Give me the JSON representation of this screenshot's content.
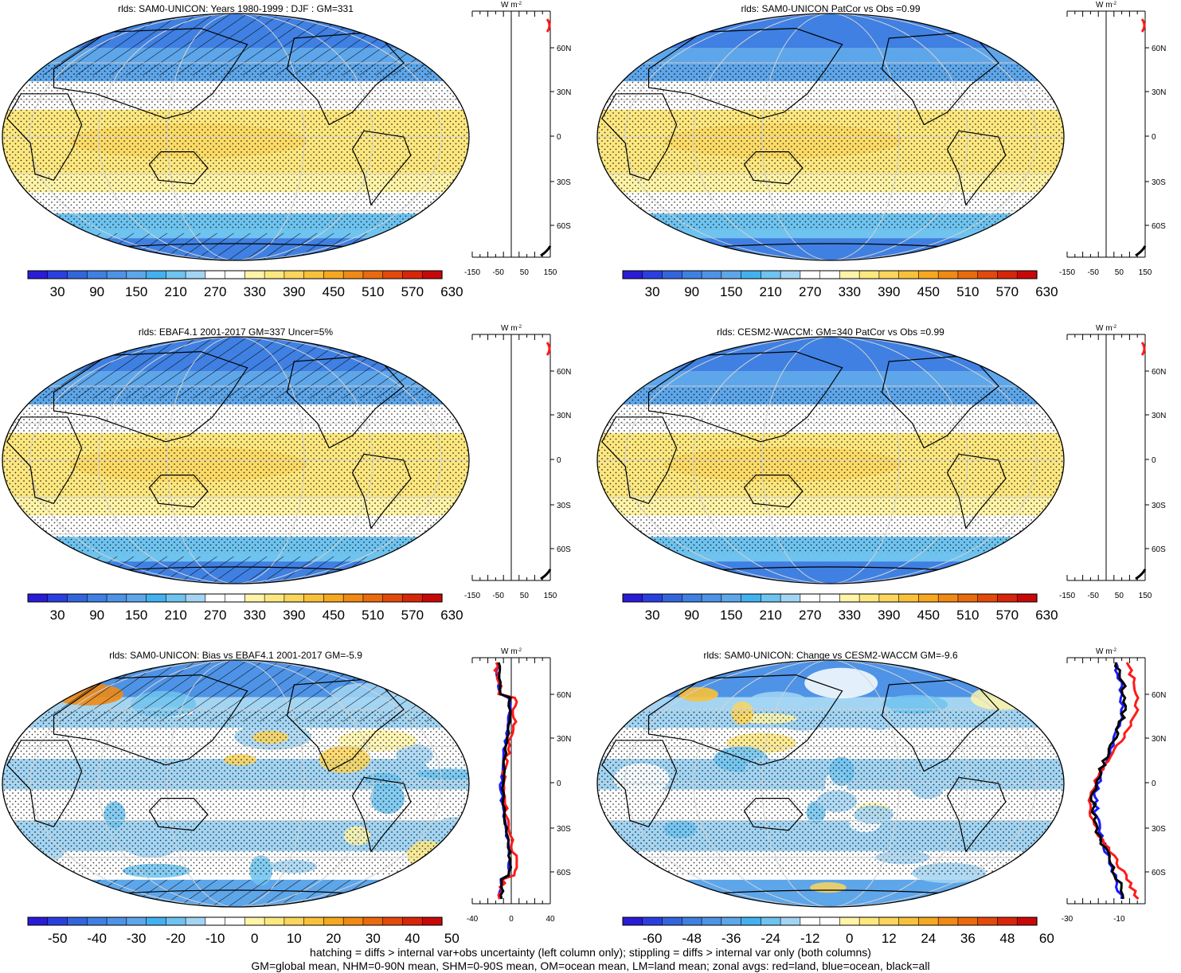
{
  "palette_levels": [
    "#2a1bd6",
    "#2b3fe0",
    "#3366dd",
    "#3f80e2",
    "#4e93e6",
    "#5ea6ea",
    "#43b1ef",
    "#6ec3ef",
    "#a3d5f3",
    "#ffffff",
    "#ffffff",
    "#fff4a8",
    "#fde880",
    "#fbd55c",
    "#f9c13a",
    "#f5a820",
    "#f08a14",
    "#ea6a0e",
    "#e24a0b",
    "#d8260a",
    "#c80808"
  ],
  "colors": {
    "land_line": "#ff1a1a",
    "ocean_line": "#1a1aff",
    "all_line": "#000000",
    "grid": "#d3d3d3",
    "coast": "#000000"
  },
  "panels": [
    {
      "title": "rlds: SAM0-UNICON: Years 1980-1999 : DJF : GM=331",
      "colorbar_labels": [
        "30",
        "90",
        "150",
        "210",
        "270",
        "330",
        "390",
        "450",
        "510",
        "570",
        "630"
      ],
      "chart_data": {
        "type": "heatmap",
        "projection": "robinson",
        "variable": "rlds",
        "lat_labels": [
          "60N",
          "30N",
          "0",
          "30S",
          "60S"
        ],
        "zonal_xticks": [
          "-150",
          "-50",
          "50",
          "150"
        ],
        "zonal_xlim": [
          -150,
          150
        ],
        "zonal_unit": "W m-2",
        "hatching": true,
        "stippling": true
      }
    },
    {
      "title": "rlds: SAM0-UNICON PatCor vs Obs =0.99",
      "colorbar_labels": [
        "30",
        "90",
        "150",
        "210",
        "270",
        "330",
        "390",
        "450",
        "510",
        "570",
        "630"
      ],
      "chart_data": {
        "type": "heatmap",
        "projection": "robinson",
        "variable": "rlds",
        "lat_labels": [
          "60N",
          "30N",
          "0",
          "30S",
          "60S"
        ],
        "zonal_xticks": [
          "-150",
          "-50",
          "50",
          "150"
        ],
        "zonal_xlim": [
          -150,
          150
        ],
        "zonal_unit": "W m-2",
        "hatching": false,
        "stippling": true
      }
    },
    {
      "title": "rlds: EBAF4.1 2001-2017 GM=337 Uncer=5%",
      "colorbar_labels": [
        "30",
        "90",
        "150",
        "210",
        "270",
        "330",
        "390",
        "450",
        "510",
        "570",
        "630"
      ],
      "chart_data": {
        "type": "heatmap",
        "projection": "robinson",
        "variable": "rlds",
        "lat_labels": [
          "60N",
          "30N",
          "0",
          "30S",
          "60S"
        ],
        "zonal_xticks": [
          "-150",
          "-50",
          "50",
          "150"
        ],
        "zonal_xlim": [
          -150,
          150
        ],
        "zonal_unit": "W m-2",
        "hatching": true,
        "stippling": true
      }
    },
    {
      "title": "rlds: CESM2-WACCM: GM=340 PatCor vs Obs =0.99",
      "colorbar_labels": [
        "30",
        "90",
        "150",
        "210",
        "270",
        "330",
        "390",
        "450",
        "510",
        "570",
        "630"
      ],
      "chart_data": {
        "type": "heatmap",
        "projection": "robinson",
        "variable": "rlds",
        "lat_labels": [
          "60N",
          "30N",
          "0",
          "30S",
          "60S"
        ],
        "zonal_xticks": [
          "-150",
          "-50",
          "50",
          "150"
        ],
        "zonal_xlim": [
          -150,
          150
        ],
        "zonal_unit": "W m-2",
        "hatching": false,
        "stippling": true
      }
    },
    {
      "title": "rlds: SAM0-UNICON: Bias vs EBAF4.1 2001-2017 GM=-5.9",
      "colorbar_labels": [
        "-50",
        "-40",
        "-30",
        "-20",
        "-10",
        "0",
        "10",
        "20",
        "30",
        "40",
        "50"
      ],
      "chart_data": {
        "type": "heatmap",
        "projection": "robinson",
        "variable": "rlds",
        "lat_labels": [
          "60N",
          "30N",
          "0",
          "30S",
          "60S"
        ],
        "zonal_xticks": [
          "-40",
          "0",
          "40"
        ],
        "zonal_xlim": [
          -40,
          40
        ],
        "zonal_unit": "W m-2",
        "hatching": true,
        "stippling": true
      }
    },
    {
      "title": "rlds: SAM0-UNICON: Change vs CESM2-WACCM GM=-9.6",
      "colorbar_labels": [
        "-60",
        "-48",
        "-36",
        "-24",
        "-12",
        "0",
        "12",
        "24",
        "36",
        "48",
        "60"
      ],
      "chart_data": {
        "type": "heatmap",
        "projection": "robinson",
        "variable": "rlds",
        "lat_labels": [
          "60N",
          "30N",
          "0",
          "30S",
          "60S"
        ],
        "zonal_xticks": [
          "-30",
          "-10"
        ],
        "zonal_xlim": [
          -30,
          0
        ],
        "zonal_unit": "W m-2",
        "hatching": false,
        "stippling": true
      }
    }
  ],
  "footer": {
    "line1": "hatching = diffs > internal var+obs uncertainty (left column only); stippling = diffs > internal var only (both columns)",
    "line2": "GM=global mean, NHM=0-90N mean, SHM=0-90S mean, OM=ocean mean, LM=land mean; zonal avgs: red=land, blue=ocean, black=all"
  }
}
